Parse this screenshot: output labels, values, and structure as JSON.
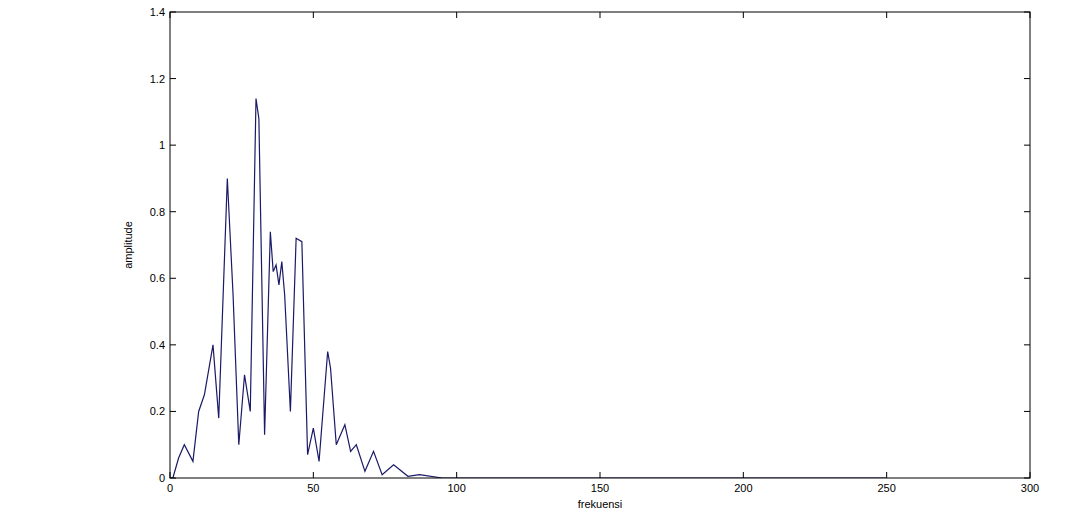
{
  "chart_data": {
    "type": "line",
    "x_label": "frekuensi",
    "y_label": "amplitude",
    "x": [
      0,
      1,
      3,
      5,
      8,
      10,
      12,
      15,
      17,
      20,
      22,
      24,
      26,
      28,
      30,
      31,
      33,
      35,
      36,
      37,
      38,
      39,
      40,
      42,
      44,
      46,
      48,
      50,
      52,
      55,
      56,
      58,
      61,
      63,
      65,
      68,
      71,
      74,
      78,
      83,
      87,
      95,
      120,
      150,
      200,
      250
    ],
    "values": [
      0,
      0,
      0.06,
      0.1,
      0.05,
      0.2,
      0.25,
      0.4,
      0.18,
      0.9,
      0.55,
      0.1,
      0.31,
      0.2,
      1.14,
      1.08,
      0.13,
      0.74,
      0.62,
      0.64,
      0.58,
      0.65,
      0.55,
      0.2,
      0.72,
      0.71,
      0.07,
      0.15,
      0.05,
      0.38,
      0.33,
      0.1,
      0.16,
      0.08,
      0.1,
      0.02,
      0.08,
      0.01,
      0.04,
      0.005,
      0.01,
      0,
      0,
      0,
      0,
      0
    ],
    "color": "#1a1a66",
    "xlim": [
      0,
      300
    ],
    "xticks": [
      0,
      50,
      100,
      150,
      200,
      250,
      300
    ],
    "ylim": [
      0,
      1.4
    ],
    "yticks": [
      0,
      0.2,
      0.4,
      0.6,
      0.8,
      1,
      1.2,
      1.4
    ],
    "grid": false
  }
}
